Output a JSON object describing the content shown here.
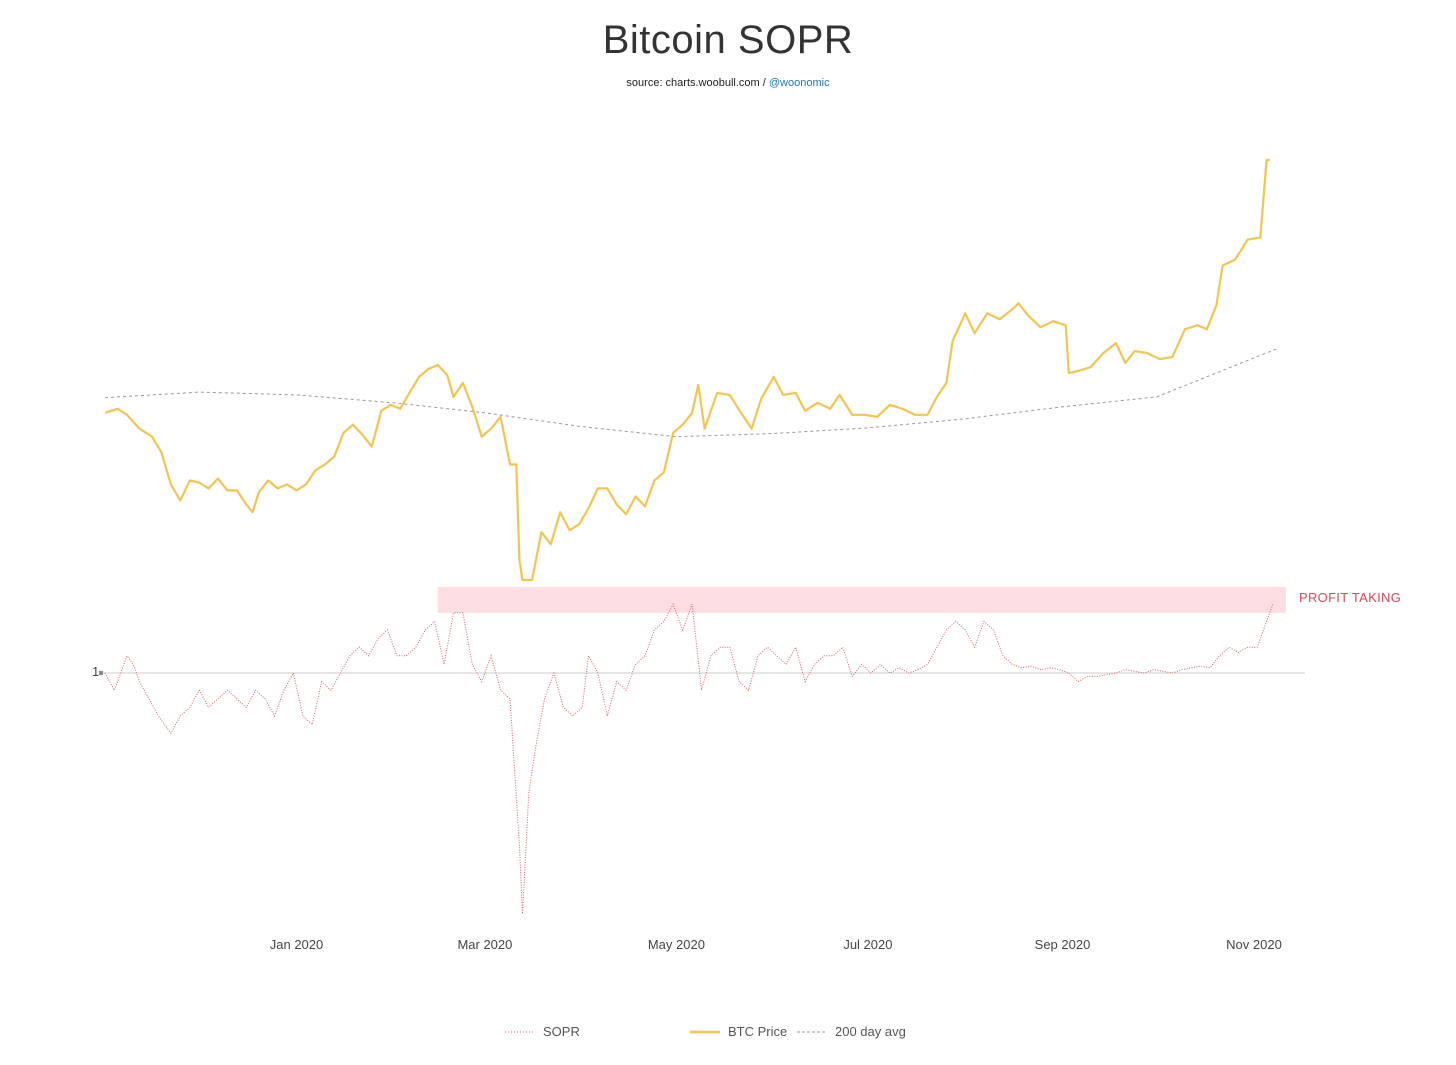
{
  "title": "Bitcoin SOPR",
  "source": {
    "prefix": "source: charts.woobull.com / ",
    "handle": "@woonomic"
  },
  "annotation": {
    "label": "PROFIT TAKING"
  },
  "colors": {
    "price": "#f2c452",
    "sopr": "#e06060",
    "avg": "#999999",
    "zone": "#fbdde2",
    "zone_text": "#e0485a",
    "baseline": "#cccccc"
  },
  "chart_data": {
    "type": "line",
    "title": "Bitcoin SOPR",
    "x_ticks": [
      "Jan 2020",
      "Mar 2020",
      "May 2020",
      "Jul 2020",
      "Sep 2020",
      "Nov 2020"
    ],
    "x_range": [
      "2019-11-01",
      "2020-11-08"
    ],
    "sopr_reference": {
      "value": 1,
      "label": "1"
    },
    "series": [
      {
        "name": "SOPR",
        "style": "dotted",
        "color": "#e06060",
        "points": [
          [
            "2019-11-01",
            1.0
          ],
          [
            "2019-11-04",
            0.99
          ],
          [
            "2019-11-08",
            1.01
          ],
          [
            "2019-11-10",
            1.005
          ],
          [
            "2019-11-12",
            0.995
          ],
          [
            "2019-11-15",
            0.985
          ],
          [
            "2019-11-18",
            0.975
          ],
          [
            "2019-11-22",
            0.965
          ],
          [
            "2019-11-25",
            0.975
          ],
          [
            "2019-11-28",
            0.98
          ],
          [
            "2019-12-01",
            0.99
          ],
          [
            "2019-12-04",
            0.98
          ],
          [
            "2019-12-07",
            0.985
          ],
          [
            "2019-12-10",
            0.99
          ],
          [
            "2019-12-13",
            0.985
          ],
          [
            "2019-12-16",
            0.98
          ],
          [
            "2019-12-19",
            0.99
          ],
          [
            "2019-12-22",
            0.985
          ],
          [
            "2019-12-25",
            0.975
          ],
          [
            "2019-12-28",
            0.99
          ],
          [
            "2019-12-31",
            1.0
          ],
          [
            "2020-01-03",
            0.975
          ],
          [
            "2020-01-06",
            0.97
          ],
          [
            "2020-01-09",
            0.995
          ],
          [
            "2020-01-12",
            0.99
          ],
          [
            "2020-01-15",
            1.0
          ],
          [
            "2020-01-18",
            1.01
          ],
          [
            "2020-01-21",
            1.015
          ],
          [
            "2020-01-24",
            1.01
          ],
          [
            "2020-01-27",
            1.02
          ],
          [
            "2020-01-30",
            1.025
          ],
          [
            "2020-02-02",
            1.01
          ],
          [
            "2020-02-05",
            1.01
          ],
          [
            "2020-02-08",
            1.015
          ],
          [
            "2020-02-11",
            1.025
          ],
          [
            "2020-02-14",
            1.03
          ],
          [
            "2020-02-17",
            1.005
          ],
          [
            "2020-02-20",
            1.035
          ],
          [
            "2020-02-23",
            1.035
          ],
          [
            "2020-02-26",
            1.005
          ],
          [
            "2020-02-29",
            0.995
          ],
          [
            "2020-03-03",
            1.01
          ],
          [
            "2020-03-06",
            0.99
          ],
          [
            "2020-03-09",
            0.985
          ],
          [
            "2020-03-12",
            0.9
          ],
          [
            "2020-03-13",
            0.86
          ],
          [
            "2020-03-15",
            0.93
          ],
          [
            "2020-03-17",
            0.955
          ],
          [
            "2020-03-20",
            0.985
          ],
          [
            "2020-03-23",
            1.0
          ],
          [
            "2020-03-26",
            0.98
          ],
          [
            "2020-03-29",
            0.975
          ],
          [
            "2020-04-01",
            0.98
          ],
          [
            "2020-04-03",
            1.01
          ],
          [
            "2020-04-06",
            1.0
          ],
          [
            "2020-04-09",
            0.975
          ],
          [
            "2020-04-12",
            0.995
          ],
          [
            "2020-04-15",
            0.99
          ],
          [
            "2020-04-18",
            1.005
          ],
          [
            "2020-04-21",
            1.01
          ],
          [
            "2020-04-24",
            1.025
          ],
          [
            "2020-04-27",
            1.03
          ],
          [
            "2020-04-30",
            1.04
          ],
          [
            "2020-05-03",
            1.025
          ],
          [
            "2020-05-06",
            1.04
          ],
          [
            "2020-05-09",
            0.99
          ],
          [
            "2020-05-12",
            1.01
          ],
          [
            "2020-05-15",
            1.015
          ],
          [
            "2020-05-18",
            1.015
          ],
          [
            "2020-05-21",
            0.995
          ],
          [
            "2020-05-24",
            0.99
          ],
          [
            "2020-05-27",
            1.01
          ],
          [
            "2020-05-30",
            1.015
          ],
          [
            "2020-06-02",
            1.01
          ],
          [
            "2020-06-05",
            1.005
          ],
          [
            "2020-06-08",
            1.015
          ],
          [
            "2020-06-11",
            0.995
          ],
          [
            "2020-06-14",
            1.005
          ],
          [
            "2020-06-17",
            1.01
          ],
          [
            "2020-06-20",
            1.01
          ],
          [
            "2020-06-23",
            1.015
          ],
          [
            "2020-06-26",
            0.998
          ],
          [
            "2020-06-29",
            1.005
          ],
          [
            "2020-07-02",
            1.0
          ],
          [
            "2020-07-05",
            1.005
          ],
          [
            "2020-07-08",
            1.0
          ],
          [
            "2020-07-11",
            1.003
          ],
          [
            "2020-07-14",
            1.0
          ],
          [
            "2020-07-17",
            1.002
          ],
          [
            "2020-07-20",
            1.005
          ],
          [
            "2020-07-23",
            1.015
          ],
          [
            "2020-07-26",
            1.025
          ],
          [
            "2020-07-29",
            1.03
          ],
          [
            "2020-08-01",
            1.025
          ],
          [
            "2020-08-04",
            1.015
          ],
          [
            "2020-08-07",
            1.03
          ],
          [
            "2020-08-10",
            1.025
          ],
          [
            "2020-08-13",
            1.01
          ],
          [
            "2020-08-16",
            1.005
          ],
          [
            "2020-08-19",
            1.003
          ],
          [
            "2020-08-22",
            1.004
          ],
          [
            "2020-08-25",
            1.002
          ],
          [
            "2020-08-28",
            1.003
          ],
          [
            "2020-08-31",
            1.002
          ],
          [
            "2020-09-03",
            1.0
          ],
          [
            "2020-09-06",
            0.995
          ],
          [
            "2020-09-09",
            0.998
          ],
          [
            "2020-09-12",
            0.998
          ],
          [
            "2020-09-15",
            0.999
          ],
          [
            "2020-09-18",
            1.0
          ],
          [
            "2020-09-21",
            1.002
          ],
          [
            "2020-09-24",
            1.001
          ],
          [
            "2020-09-27",
            1.0
          ],
          [
            "2020-09-30",
            1.002
          ],
          [
            "2020-10-03",
            1.001
          ],
          [
            "2020-10-06",
            1.0
          ],
          [
            "2020-10-09",
            1.002
          ],
          [
            "2020-10-12",
            1.003
          ],
          [
            "2020-10-15",
            1.004
          ],
          [
            "2020-10-18",
            1.003
          ],
          [
            "2020-10-21",
            1.01
          ],
          [
            "2020-10-24",
            1.015
          ],
          [
            "2020-10-27",
            1.012
          ],
          [
            "2020-10-30",
            1.015
          ],
          [
            "2020-11-02",
            1.015
          ],
          [
            "2020-11-05",
            1.03
          ],
          [
            "2020-11-07",
            1.04
          ]
        ]
      },
      {
        "name": "BTC Price",
        "style": "solid",
        "color": "#f2c452",
        "points": [
          [
            "2019-11-01",
            9200
          ],
          [
            "2019-11-05",
            9300
          ],
          [
            "2019-11-08",
            9150
          ],
          [
            "2019-11-12",
            8800
          ],
          [
            "2019-11-16",
            8600
          ],
          [
            "2019-11-19",
            8200
          ],
          [
            "2019-11-22",
            7400
          ],
          [
            "2019-11-25",
            7000
          ],
          [
            "2019-11-28",
            7500
          ],
          [
            "2019-12-01",
            7450
          ],
          [
            "2019-12-04",
            7300
          ],
          [
            "2019-12-07",
            7550
          ],
          [
            "2019-12-10",
            7250
          ],
          [
            "2019-12-13",
            7250
          ],
          [
            "2019-12-16",
            6900
          ],
          [
            "2019-12-18",
            6700
          ],
          [
            "2019-12-20",
            7200
          ],
          [
            "2019-12-23",
            7500
          ],
          [
            "2019-12-26",
            7300
          ],
          [
            "2019-12-29",
            7400
          ],
          [
            "2020-01-01",
            7250
          ],
          [
            "2020-01-04",
            7400
          ],
          [
            "2020-01-07",
            7750
          ],
          [
            "2020-01-10",
            7900
          ],
          [
            "2020-01-13",
            8100
          ],
          [
            "2020-01-16",
            8700
          ],
          [
            "2020-01-19",
            8900
          ],
          [
            "2020-01-22",
            8650
          ],
          [
            "2020-01-25",
            8350
          ],
          [
            "2020-01-28",
            9250
          ],
          [
            "2020-01-31",
            9400
          ],
          [
            "2020-02-03",
            9300
          ],
          [
            "2020-02-06",
            9700
          ],
          [
            "2020-02-09",
            10100
          ],
          [
            "2020-02-12",
            10300
          ],
          [
            "2020-02-15",
            10400
          ],
          [
            "2020-02-18",
            10150
          ],
          [
            "2020-02-20",
            9600
          ],
          [
            "2020-02-23",
            9950
          ],
          [
            "2020-02-26",
            9350
          ],
          [
            "2020-02-29",
            8600
          ],
          [
            "2020-03-03",
            8800
          ],
          [
            "2020-03-06",
            9100
          ],
          [
            "2020-03-09",
            7900
          ],
          [
            "2020-03-11",
            7900
          ],
          [
            "2020-03-12",
            5500
          ],
          [
            "2020-03-13",
            5000
          ],
          [
            "2020-03-16",
            5000
          ],
          [
            "2020-03-19",
            6200
          ],
          [
            "2020-03-22",
            5900
          ],
          [
            "2020-03-25",
            6700
          ],
          [
            "2020-03-28",
            6250
          ],
          [
            "2020-03-31",
            6400
          ],
          [
            "2020-04-03",
            6800
          ],
          [
            "2020-04-06",
            7300
          ],
          [
            "2020-04-09",
            7300
          ],
          [
            "2020-04-12",
            6900
          ],
          [
            "2020-04-15",
            6650
          ],
          [
            "2020-04-18",
            7100
          ],
          [
            "2020-04-21",
            6850
          ],
          [
            "2020-04-24",
            7500
          ],
          [
            "2020-04-27",
            7700
          ],
          [
            "2020-04-30",
            8700
          ],
          [
            "2020-05-03",
            8900
          ],
          [
            "2020-05-06",
            9200
          ],
          [
            "2020-05-08",
            9900
          ],
          [
            "2020-05-10",
            8800
          ],
          [
            "2020-05-14",
            9700
          ],
          [
            "2020-05-18",
            9650
          ],
          [
            "2020-05-22",
            9150
          ],
          [
            "2020-05-25",
            8800
          ],
          [
            "2020-05-28",
            9550
          ],
          [
            "2020-06-01",
            10100
          ],
          [
            "2020-06-04",
            9650
          ],
          [
            "2020-06-08",
            9700
          ],
          [
            "2020-06-11",
            9250
          ],
          [
            "2020-06-15",
            9450
          ],
          [
            "2020-06-19",
            9300
          ],
          [
            "2020-06-22",
            9650
          ],
          [
            "2020-06-26",
            9150
          ],
          [
            "2020-06-30",
            9150
          ],
          [
            "2020-07-04",
            9100
          ],
          [
            "2020-07-08",
            9400
          ],
          [
            "2020-07-12",
            9300
          ],
          [
            "2020-07-16",
            9150
          ],
          [
            "2020-07-20",
            9150
          ],
          [
            "2020-07-23",
            9600
          ],
          [
            "2020-07-26",
            9950
          ],
          [
            "2020-07-28",
            11000
          ],
          [
            "2020-08-01",
            11700
          ],
          [
            "2020-08-04",
            11200
          ],
          [
            "2020-08-08",
            11700
          ],
          [
            "2020-08-12",
            11550
          ],
          [
            "2020-08-16",
            11800
          ],
          [
            "2020-08-18",
            11950
          ],
          [
            "2020-08-21",
            11650
          ],
          [
            "2020-08-25",
            11350
          ],
          [
            "2020-08-29",
            11500
          ],
          [
            "2020-09-02",
            11400
          ],
          [
            "2020-09-03",
            10200
          ],
          [
            "2020-09-06",
            10250
          ],
          [
            "2020-09-10",
            10350
          ],
          [
            "2020-09-14",
            10700
          ],
          [
            "2020-09-18",
            10950
          ],
          [
            "2020-09-21",
            10450
          ],
          [
            "2020-09-24",
            10750
          ],
          [
            "2020-09-28",
            10700
          ],
          [
            "2020-10-02",
            10550
          ],
          [
            "2020-10-06",
            10600
          ],
          [
            "2020-10-10",
            11300
          ],
          [
            "2020-10-14",
            11400
          ],
          [
            "2020-10-17",
            11300
          ],
          [
            "2020-10-20",
            11900
          ],
          [
            "2020-10-22",
            12900
          ],
          [
            "2020-10-26",
            13050
          ],
          [
            "2020-10-30",
            13550
          ],
          [
            "2020-11-03",
            13600
          ],
          [
            "2020-11-05",
            15550
          ],
          [
            "2020-11-06",
            15550
          ]
        ]
      },
      {
        "name": "200 day avg",
        "style": "dashed",
        "color": "#999999",
        "points": [
          [
            "2019-11-01",
            9580
          ],
          [
            "2019-12-01",
            9720
          ],
          [
            "2020-01-01",
            9650
          ],
          [
            "2020-02-01",
            9450
          ],
          [
            "2020-03-01",
            9200
          ],
          [
            "2020-04-01",
            8850
          ],
          [
            "2020-05-01",
            8600
          ],
          [
            "2020-06-01",
            8680
          ],
          [
            "2020-07-01",
            8820
          ],
          [
            "2020-08-01",
            9050
          ],
          [
            "2020-09-01",
            9350
          ],
          [
            "2020-10-01",
            9600
          ],
          [
            "2020-11-08",
            10800
          ]
        ]
      }
    ],
    "legend": {
      "position": "bottom",
      "entries": [
        "SOPR",
        "BTC Price",
        "200 day avg"
      ]
    },
    "annotations": [
      {
        "type": "band",
        "label": "PROFIT TAKING",
        "sopr_range": [
          1.035,
          1.05
        ],
        "from": "2020-02-15",
        "to": "2020-11-08"
      }
    ]
  }
}
